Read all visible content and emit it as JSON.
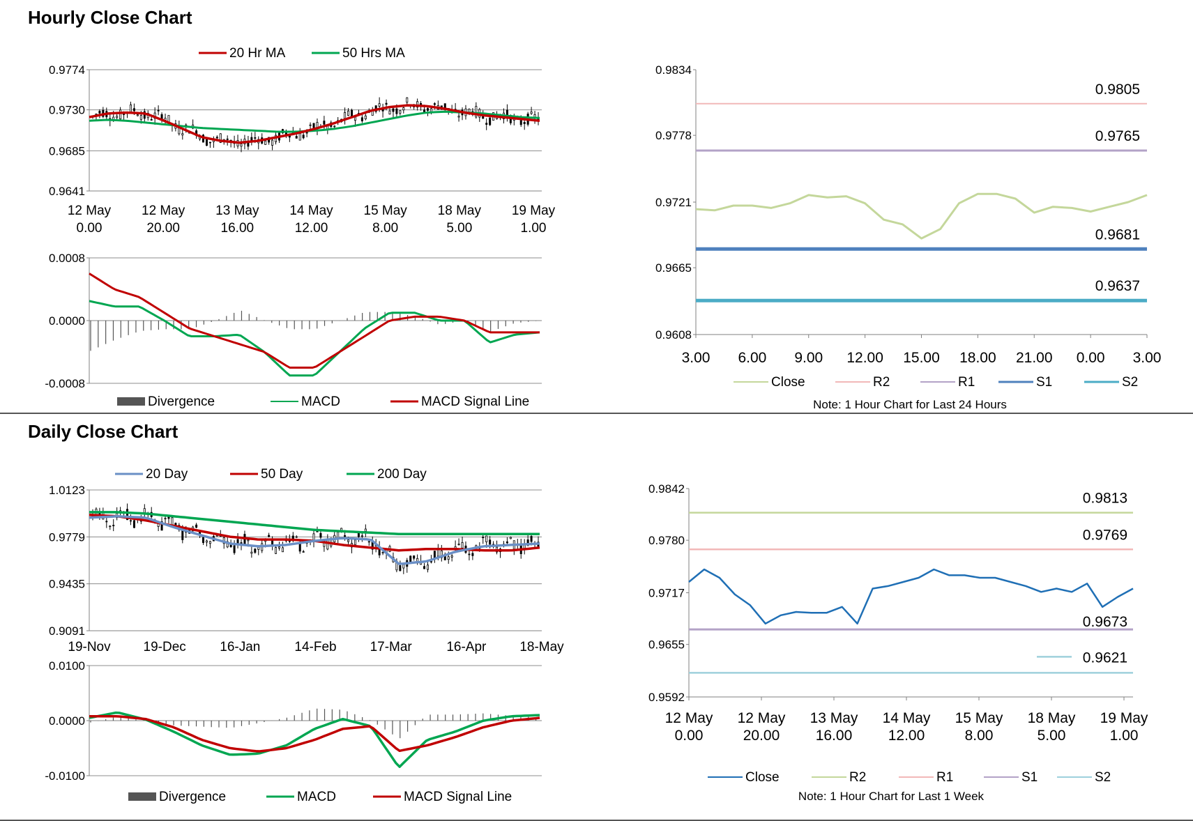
{
  "sections": {
    "hourly_title": "Hourly Close Chart",
    "daily_title": "Daily Close Chart"
  },
  "colors": {
    "ma20_hr": "#C00000",
    "ma50_hr": "#00A651",
    "candle": "#000000",
    "hist": "#555555",
    "macd": "#00A651",
    "signal": "#C00000",
    "close_light": "#C4D79B",
    "r2_pink": "#F2B8B8",
    "r1_purple": "#B3A2C7",
    "s1_blue": "#4F81BD",
    "s2_teal": "#4BACC6",
    "close_blue": "#1F6FB5",
    "ma20_day": "#6A8FC6",
    "s2_light": "#9ED0DC"
  },
  "chart_data": [
    {
      "id": "hourly_candles",
      "type": "candlestick",
      "ylim": [
        0.9641,
        0.9774
      ],
      "ytick_labels": [
        "0.9774",
        "0.9730",
        "0.9685",
        "0.9641"
      ],
      "xtick_labels": [
        [
          "12 May",
          "0.00"
        ],
        [
          "12 May",
          "20.00"
        ],
        [
          "13 May",
          "16.00"
        ],
        [
          "14 May",
          "12.00"
        ],
        [
          "15 May",
          "8.00"
        ],
        [
          "18 May",
          "5.00"
        ],
        [
          "19 May",
          "1.00"
        ]
      ],
      "legend": [
        "20 Hr MA",
        "50 Hrs MA"
      ],
      "series": [
        {
          "name": "20 Hr MA",
          "values": [
            0.9722,
            0.9726,
            0.9727,
            0.9726,
            0.9718,
            0.9709,
            0.97,
            0.9696,
            0.9694,
            0.9696,
            0.97,
            0.9704,
            0.9709,
            0.9715,
            0.9722,
            0.9729,
            0.9733,
            0.9735,
            0.9734,
            0.9731,
            0.9727,
            0.9724,
            0.9722,
            0.972,
            0.9718
          ]
        },
        {
          "name": "50 Hrs MA",
          "values": [
            0.9718,
            0.9719,
            0.9718,
            0.9716,
            0.9714,
            0.9712,
            0.971,
            0.9709,
            0.9708,
            0.9707,
            0.9706,
            0.9706,
            0.9707,
            0.9709,
            0.9712,
            0.9716,
            0.972,
            0.9724,
            0.9727,
            0.9728,
            0.9727,
            0.9726,
            0.9724,
            0.9722,
            0.9721
          ]
        }
      ]
    },
    {
      "id": "hourly_macd",
      "type": "macd",
      "ylim": [
        -0.0008,
        0.0008
      ],
      "ytick_labels": [
        "0.0008",
        "0.0000",
        "-0.0008"
      ],
      "legend": [
        "Divergence",
        "MACD",
        "MACD Signal Line"
      ],
      "series": [
        {
          "name": "MACD",
          "values": [
            0.00025,
            0.00018,
            0.00018,
            0.0,
            -0.0002,
            -0.0002,
            -0.00018,
            -0.0004,
            -0.0007,
            -0.0007,
            -0.0004,
            -0.0001,
            0.0001,
            0.0001,
            0.0,
            0.0,
            -0.00028,
            -0.00018,
            -0.00015
          ]
        },
        {
          "name": "MACD Signal Line",
          "values": [
            0.0006,
            0.0004,
            0.0003,
            0.0001,
            -0.0001,
            -0.0002,
            -0.0003,
            -0.0004,
            -0.0006,
            -0.0006,
            -0.0004,
            -0.0002,
            0.0,
            5e-05,
            5e-05,
            0.0,
            -0.00015,
            -0.00015,
            -0.00015
          ]
        }
      ]
    },
    {
      "id": "hourly_pivot",
      "type": "line",
      "title": "",
      "ylim": [
        0.9608,
        0.9834
      ],
      "ytick_labels": [
        "0.9834",
        "0.9778",
        "0.9721",
        "0.9665",
        "0.9608"
      ],
      "xtick_labels": [
        "3.00",
        "6.00",
        "9.00",
        "12.00",
        "15.00",
        "18.00",
        "21.00",
        "0.00",
        "3.00"
      ],
      "levels": [
        {
          "name": "R2",
          "value": 0.9805,
          "label": "0.9805"
        },
        {
          "name": "R1",
          "value": 0.9765,
          "label": "0.9765"
        },
        {
          "name": "S1",
          "value": 0.9681,
          "label": "0.9681"
        },
        {
          "name": "S2",
          "value": 0.9637,
          "label": "0.9637"
        }
      ],
      "series": [
        {
          "name": "Close",
          "values": [
            0.9715,
            0.9714,
            0.9718,
            0.9718,
            0.9716,
            0.972,
            0.9727,
            0.9725,
            0.9726,
            0.972,
            0.9706,
            0.9702,
            0.969,
            0.9698,
            0.972,
            0.9728,
            0.9728,
            0.9724,
            0.9712,
            0.9717,
            0.9716,
            0.9713,
            0.9717,
            0.9721,
            0.9727
          ]
        }
      ],
      "legend": [
        "Close",
        "R2",
        "R1",
        "S1",
        "S2"
      ],
      "note": "Note: 1 Hour Chart for Last 24 Hours"
    },
    {
      "id": "daily_candles",
      "type": "candlestick",
      "ylim": [
        0.9091,
        1.0123
      ],
      "ytick_labels": [
        "1.0123",
        "0.9779",
        "0.9435",
        "0.9091"
      ],
      "xtick_labels": [
        "19-Nov",
        "19-Dec",
        "16-Jan",
        "14-Feb",
        "17-Mar",
        "16-Apr",
        "18-May"
      ],
      "legend": [
        "20 Day",
        "50 Day",
        "200 Day"
      ],
      "series": [
        {
          "name": "20 Day",
          "values": [
            0.992,
            0.993,
            0.992,
            0.985,
            0.979,
            0.973,
            0.971,
            0.972,
            0.975,
            0.977,
            0.976,
            0.958,
            0.96,
            0.967,
            0.971,
            0.972,
            0.973
          ]
        },
        {
          "name": "50 Day",
          "values": [
            0.994,
            0.993,
            0.99,
            0.986,
            0.982,
            0.978,
            0.976,
            0.976,
            0.975,
            0.972,
            0.97,
            0.968,
            0.969,
            0.969,
            0.968,
            0.968,
            0.97
          ]
        },
        {
          "name": "200 Day",
          "values": [
            0.996,
            0.996,
            0.995,
            0.993,
            0.991,
            0.989,
            0.987,
            0.985,
            0.983,
            0.982,
            0.981,
            0.98,
            0.98,
            0.98,
            0.98,
            0.98,
            0.98
          ]
        }
      ]
    },
    {
      "id": "daily_macd",
      "type": "macd",
      "ylim": [
        -0.01,
        0.01
      ],
      "ytick_labels": [
        "0.0100",
        "0.0000",
        "-0.0100"
      ],
      "legend": [
        "Divergence",
        "MACD",
        "MACD Signal Line"
      ],
      "series": [
        {
          "name": "MACD",
          "values": [
            0.0005,
            0.0015,
            0.0002,
            -0.002,
            -0.0045,
            -0.0062,
            -0.006,
            -0.0045,
            -0.0015,
            0.0003,
            -0.001,
            -0.0085,
            -0.0035,
            -0.002,
            0.0,
            0.0008,
            0.001
          ]
        },
        {
          "name": "MACD Signal Line",
          "values": [
            0.0008,
            0.0008,
            0.0003,
            -0.0012,
            -0.0035,
            -0.005,
            -0.0056,
            -0.005,
            -0.0035,
            -0.0015,
            -0.001,
            -0.0055,
            -0.0045,
            -0.003,
            -0.0012,
            0.0,
            0.0005
          ]
        }
      ]
    },
    {
      "id": "weekly_pivot",
      "type": "line",
      "ylim": [
        0.9592,
        0.9842
      ],
      "ytick_labels": [
        "0.9842",
        "0.9780",
        "0.9717",
        "0.9655",
        "0.9592"
      ],
      "xtick_labels": [
        [
          "12 May",
          "0.00"
        ],
        [
          "12 May",
          "20.00"
        ],
        [
          "13 May",
          "16.00"
        ],
        [
          "14 May",
          "12.00"
        ],
        [
          "15 May",
          "8.00"
        ],
        [
          "18 May",
          "5.00"
        ],
        [
          "19 May",
          "1.00"
        ]
      ],
      "levels": [
        {
          "name": "R2",
          "value": 0.9813,
          "label": "0.9813"
        },
        {
          "name": "R1",
          "value": 0.9769,
          "label": "0.9769"
        },
        {
          "name": "S1",
          "value": 0.9673,
          "label": "0.9673"
        },
        {
          "name": "S2",
          "value": 0.9621,
          "label": "0.9621"
        }
      ],
      "series": [
        {
          "name": "Close",
          "values": [
            0.973,
            0.9745,
            0.9735,
            0.9715,
            0.9702,
            0.968,
            0.969,
            0.9694,
            0.9693,
            0.9693,
            0.97,
            0.968,
            0.9722,
            0.9725,
            0.973,
            0.9735,
            0.9745,
            0.9738,
            0.9738,
            0.9735,
            0.9735,
            0.973,
            0.9725,
            0.9718,
            0.9722,
            0.9718,
            0.9728,
            0.97,
            0.9712,
            0.9722
          ]
        }
      ],
      "legend": [
        "Close",
        "R2",
        "R1",
        "S1",
        "S2"
      ],
      "note": "Note: 1 Hour Chart for Last 1 Week"
    }
  ]
}
